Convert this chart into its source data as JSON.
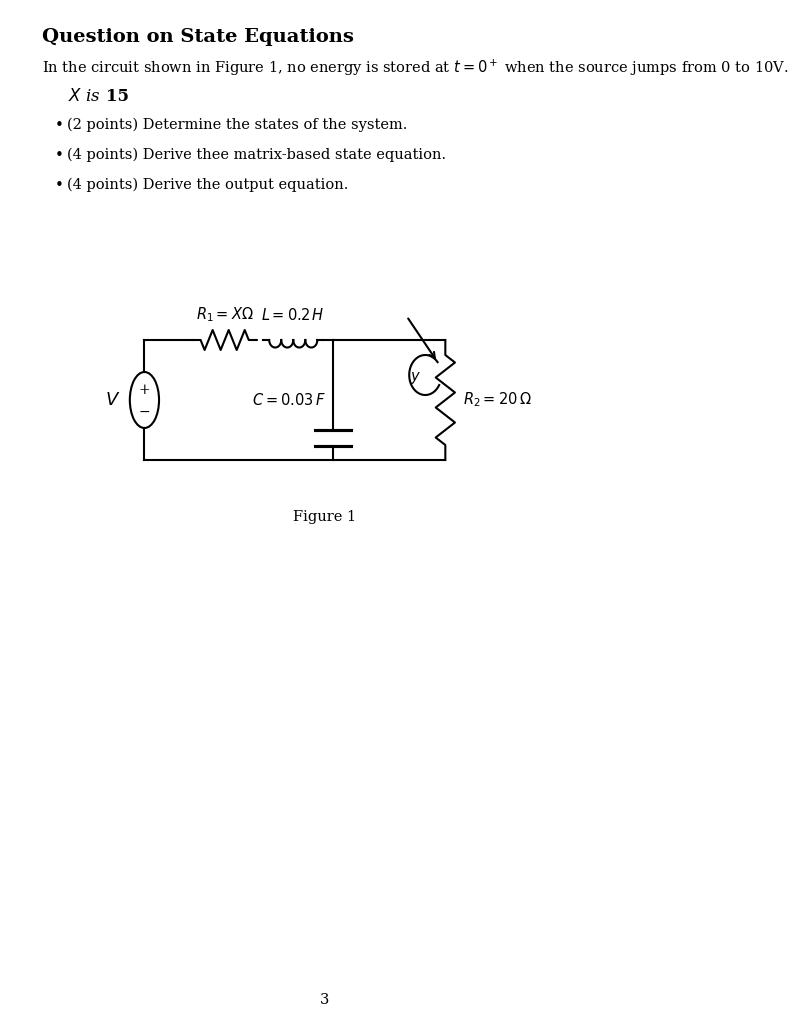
{
  "title": "Question on State Equations",
  "intro_text": "In the circuit shown in Figure 1, no energy is stored at $t = 0^+$ when the source jumps from 0 to 10V.",
  "x_line": "$X$ is {\\bf 15}",
  "bullet1": "(2 points) Determine the states of the system.",
  "bullet2": "(4 points) Derive thee matrix-based state equation.",
  "bullet3": "(4 points) Derive the output equation.",
  "figure_label": "Figure 1",
  "page_number": "3",
  "bg_color": "#ffffff",
  "text_color": "#000000",
  "circuit": {
    "V_label": "$V$",
    "R1_label": "$R_1 = X\\Omega$",
    "L_label": "$L = 0.2\\,H$",
    "C_label": "$C = 0.03\\,F$",
    "R2_label": "$R_2 = 20\\,\\Omega$",
    "y_label": "$y$"
  }
}
